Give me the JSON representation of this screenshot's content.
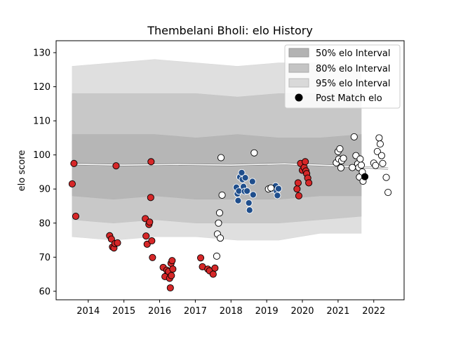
{
  "chart_data": {
    "type": "scatter",
    "title": "Thembelani Bholi: elo History",
    "xlabel": "",
    "ylabel": "elo score",
    "xlim": [
      2013.1,
      2022.85
    ],
    "ylim": [
      57.5,
      133.5
    ],
    "x_ticks": [
      "2014",
      "2015",
      "2016",
      "2017",
      "2018",
      "2019",
      "2020",
      "2021",
      "2022"
    ],
    "y_ticks": [
      "60",
      "70",
      "80",
      "90",
      "100",
      "110",
      "120",
      "130"
    ],
    "legend_position": "upper right",
    "legend": [
      {
        "label": "50% elo Interval",
        "kind": "band50"
      },
      {
        "label": "80% elo Interval",
        "kind": "band80"
      },
      {
        "label": "95% elo Interval",
        "kind": "band95"
      },
      {
        "label": "Post Match elo",
        "kind": "marker"
      }
    ],
    "colors": {
      "band95": "#d9d9d9",
      "band80": "#c4c4c4",
      "band50": "#b3b3b3",
      "red": "#d62728",
      "blue": "#1f4e8c",
      "white": "#ffffff",
      "edge": "#000000",
      "mean_line": "#ffffff",
      "alt_line": "#808080"
    },
    "bands": {
      "x": [
        2013.55,
        2021.65
      ],
      "band95": [
        [
          76,
          126
        ],
        [
          75,
          127
        ],
        [
          76,
          128
        ],
        [
          76,
          127
        ],
        [
          75,
          126
        ],
        [
          75,
          127
        ],
        [
          77,
          127
        ],
        [
          77,
          125
        ]
      ],
      "band80": [
        [
          81,
          118
        ],
        [
          80,
          118
        ],
        [
          81,
          118
        ],
        [
          80,
          118
        ],
        [
          80,
          117
        ],
        [
          80,
          118
        ],
        [
          81,
          118
        ],
        [
          82,
          118
        ]
      ],
      "band50": [
        [
          88,
          106
        ],
        [
          87,
          106
        ],
        [
          88,
          106
        ],
        [
          87,
          105
        ],
        [
          87,
          106
        ],
        [
          87,
          105
        ],
        [
          88,
          105
        ],
        [
          88,
          106
        ]
      ]
    },
    "mean_line": {
      "x": [
        2013.5,
        2015.0,
        2016.5,
        2018.0,
        2019.5,
        2021.0,
        2022.4
      ],
      "y": [
        97.3,
        97.0,
        97.2,
        97.0,
        97.4,
        96.8,
        96.0
      ]
    },
    "series": [
      {
        "color": "red",
        "points": [
          [
            2013.55,
            91.5
          ],
          [
            2013.6,
            97.5
          ],
          [
            2013.65,
            82.0
          ],
          [
            2014.6,
            76.3
          ],
          [
            2014.65,
            75.3
          ],
          [
            2014.68,
            73.0
          ],
          [
            2014.72,
            72.7
          ],
          [
            2014.75,
            74.0
          ],
          [
            2014.82,
            74.2
          ],
          [
            2014.78,
            96.8
          ],
          [
            2015.6,
            81.3
          ],
          [
            2015.62,
            76.2
          ],
          [
            2015.65,
            73.8
          ],
          [
            2015.7,
            79.6
          ],
          [
            2015.72,
            80.3
          ],
          [
            2015.75,
            87.5
          ],
          [
            2015.78,
            74.8
          ],
          [
            2015.8,
            69.9
          ],
          [
            2015.76,
            98.0
          ],
          [
            2016.1,
            67.0
          ],
          [
            2016.15,
            64.3
          ],
          [
            2016.2,
            66.2
          ],
          [
            2016.25,
            65.8
          ],
          [
            2016.28,
            63.8
          ],
          [
            2016.3,
            61.0
          ],
          [
            2016.32,
            68.2
          ],
          [
            2016.35,
            69.0
          ],
          [
            2016.37,
            66.5
          ],
          [
            2016.33,
            64.6
          ],
          [
            2017.15,
            69.8
          ],
          [
            2017.2,
            67.2
          ],
          [
            2017.35,
            66.5
          ],
          [
            2017.4,
            66.0
          ],
          [
            2017.5,
            65.0
          ],
          [
            2017.55,
            66.8
          ],
          [
            2019.85,
            90.0
          ],
          [
            2019.88,
            91.8
          ],
          [
            2019.9,
            88.0
          ],
          [
            2019.95,
            97.5
          ],
          [
            2020.0,
            95.5
          ],
          [
            2020.05,
            96.3
          ],
          [
            2020.08,
            98.0
          ],
          [
            2020.1,
            95.3
          ],
          [
            2020.12,
            94.5
          ],
          [
            2020.15,
            93.2
          ],
          [
            2020.18,
            91.8
          ]
        ]
      },
      {
        "color": "blue",
        "points": [
          [
            2018.15,
            90.5
          ],
          [
            2018.18,
            88.6
          ],
          [
            2018.2,
            86.6
          ],
          [
            2018.22,
            89.4
          ],
          [
            2018.25,
            93.5
          ],
          [
            2018.3,
            94.8
          ],
          [
            2018.32,
            92.8
          ],
          [
            2018.35,
            90.7
          ],
          [
            2018.38,
            89.3
          ],
          [
            2018.4,
            93.3
          ],
          [
            2018.45,
            89.4
          ],
          [
            2018.5,
            85.9
          ],
          [
            2018.52,
            83.8
          ],
          [
            2018.6,
            92.2
          ],
          [
            2018.62,
            88.3
          ],
          [
            2019.1,
            89.9
          ],
          [
            2019.15,
            90.2
          ],
          [
            2019.2,
            90.0
          ],
          [
            2019.25,
            90.9
          ],
          [
            2019.28,
            89.3
          ],
          [
            2019.3,
            88.1
          ],
          [
            2019.33,
            90.1
          ]
        ]
      },
      {
        "color": "white",
        "points": [
          [
            2017.6,
            70.3
          ],
          [
            2017.62,
            76.8
          ],
          [
            2017.65,
            80.0
          ],
          [
            2017.68,
            83.0
          ],
          [
            2017.7,
            75.6
          ],
          [
            2017.72,
            99.2
          ],
          [
            2017.75,
            88.2
          ],
          [
            2018.65,
            100.6
          ],
          [
            2019.05,
            90.0
          ],
          [
            2019.12,
            90.3
          ],
          [
            2020.95,
            97.7
          ],
          [
            2021.0,
            101.0
          ],
          [
            2021.02,
            98.8
          ],
          [
            2021.05,
            101.8
          ],
          [
            2021.08,
            96.2
          ],
          [
            2021.1,
            98.3
          ],
          [
            2021.15,
            99.0
          ],
          [
            2021.45,
            105.3
          ],
          [
            2021.5,
            99.8
          ],
          [
            2021.55,
            97.4
          ],
          [
            2021.58,
            96.3
          ],
          [
            2021.6,
            93.5
          ],
          [
            2021.65,
            97.0
          ],
          [
            2021.7,
            92.3
          ],
          [
            2021.62,
            98.8
          ],
          [
            2021.68,
            95.0
          ],
          [
            2022.0,
            97.6
          ],
          [
            2022.05,
            96.9
          ],
          [
            2022.1,
            101.0
          ],
          [
            2022.15,
            105.0
          ],
          [
            2022.18,
            103.2
          ],
          [
            2022.22,
            99.8
          ],
          [
            2022.25,
            97.5
          ],
          [
            2022.35,
            93.4
          ],
          [
            2022.4,
            89.0
          ],
          [
            2021.4,
            96.3
          ]
        ]
      },
      {
        "color": "edge",
        "points": [
          [
            2021.75,
            93.6
          ]
        ]
      }
    ]
  }
}
